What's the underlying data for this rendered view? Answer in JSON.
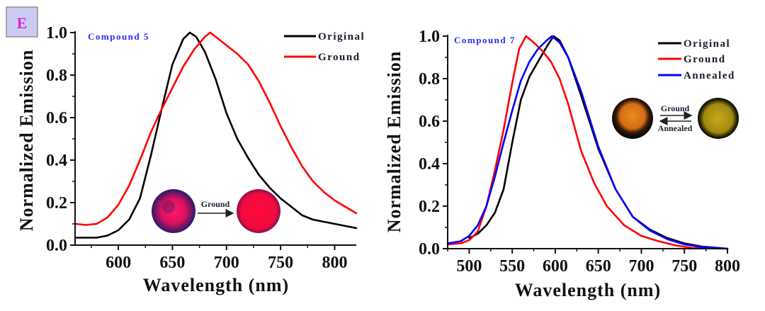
{
  "panel_label": "E",
  "colors": {
    "original": "#000000",
    "ground": "#ff0000",
    "annealed": "#0000ff",
    "compound_label": "#2a2aff",
    "badge_bg": "#ccccf0",
    "badge_text": "#e020e0"
  },
  "insets": {
    "left": {
      "arrow_label": "Ground"
    },
    "right": {
      "forward_label": "Ground",
      "reverse_label": "Annealed"
    }
  },
  "chart_data": [
    {
      "type": "line",
      "title": "Compound 5",
      "xlabel": "Wavelength (nm)",
      "ylabel": "Normalized Emission",
      "xlim": [
        560,
        820
      ],
      "ylim": [
        0.0,
        1.0
      ],
      "xticks": [
        600,
        650,
        700,
        750,
        800
      ],
      "xtick_labels": [
        "600",
        "650",
        "700",
        "750",
        "800"
      ],
      "yticks": [
        0.0,
        0.2,
        0.4,
        0.6,
        0.8,
        1.0
      ],
      "ytick_labels": [
        "0.0",
        "0.2",
        "0.4",
        "0.6",
        "0.8",
        "1.0"
      ],
      "grid": false,
      "legend_position": "top-right",
      "series": [
        {
          "name": "Original",
          "color": "#000000",
          "x": [
            560,
            580,
            590,
            600,
            610,
            620,
            630,
            640,
            650,
            660,
            666,
            672,
            680,
            690,
            700,
            710,
            720,
            730,
            740,
            750,
            760,
            770,
            780,
            790,
            800,
            810,
            820
          ],
          "y": [
            0.035,
            0.035,
            0.045,
            0.07,
            0.12,
            0.22,
            0.42,
            0.64,
            0.85,
            0.97,
            1.0,
            0.98,
            0.91,
            0.78,
            0.62,
            0.5,
            0.41,
            0.33,
            0.27,
            0.22,
            0.18,
            0.14,
            0.12,
            0.11,
            0.1,
            0.09,
            0.08
          ]
        },
        {
          "name": "Ground",
          "color": "#ff0000",
          "x": [
            560,
            570,
            580,
            590,
            600,
            610,
            620,
            630,
            640,
            650,
            660,
            670,
            680,
            685,
            690,
            700,
            710,
            720,
            730,
            740,
            750,
            760,
            770,
            780,
            790,
            800,
            810,
            820
          ],
          "y": [
            0.1,
            0.095,
            0.1,
            0.13,
            0.19,
            0.28,
            0.4,
            0.53,
            0.64,
            0.74,
            0.84,
            0.92,
            0.98,
            1.0,
            0.98,
            0.94,
            0.9,
            0.85,
            0.77,
            0.67,
            0.56,
            0.46,
            0.37,
            0.3,
            0.25,
            0.21,
            0.18,
            0.15
          ]
        }
      ]
    },
    {
      "type": "line",
      "title": "Compound 7",
      "xlabel": "Wavelength (nm)",
      "ylabel": "Normalized Emission",
      "xlim": [
        475,
        800
      ],
      "ylim": [
        0.0,
        1.0
      ],
      "xticks": [
        500,
        550,
        600,
        650,
        700,
        750,
        800
      ],
      "xtick_labels": [
        "500",
        "550",
        "600",
        "650",
        "700",
        "750",
        "800"
      ],
      "yticks": [
        0.0,
        0.2,
        0.4,
        0.6,
        0.8,
        1.0
      ],
      "ytick_labels": [
        "0.0",
        "0.2",
        "0.4",
        "0.6",
        "0.8",
        "1.0"
      ],
      "grid": false,
      "legend_position": "top-right",
      "series": [
        {
          "name": "Original",
          "color": "#000000",
          "x": [
            500,
            510,
            520,
            530,
            540,
            550,
            560,
            570,
            580,
            590,
            598,
            605,
            615,
            630,
            650,
            670,
            690,
            710,
            730,
            750,
            770,
            800
          ],
          "y": [
            0.05,
            0.07,
            0.11,
            0.17,
            0.28,
            0.5,
            0.7,
            0.81,
            0.88,
            0.95,
            1.0,
            0.98,
            0.9,
            0.72,
            0.47,
            0.28,
            0.15,
            0.09,
            0.05,
            0.025,
            0.01,
            0.0
          ]
        },
        {
          "name": "Ground",
          "color": "#ff0000",
          "x": [
            475,
            490,
            500,
            510,
            520,
            530,
            540,
            550,
            558,
            566,
            575,
            585,
            595,
            605,
            615,
            630,
            645,
            660,
            680,
            700,
            720,
            740,
            760,
            800
          ],
          "y": [
            0.02,
            0.025,
            0.04,
            0.08,
            0.2,
            0.37,
            0.56,
            0.78,
            0.94,
            1.0,
            0.97,
            0.93,
            0.88,
            0.8,
            0.68,
            0.46,
            0.31,
            0.2,
            0.11,
            0.06,
            0.035,
            0.015,
            0.003,
            0.0
          ]
        },
        {
          "name": "Annealed",
          "color": "#0000ff",
          "x": [
            475,
            490,
            500,
            510,
            520,
            530,
            540,
            550,
            560,
            570,
            580,
            590,
            596,
            605,
            615,
            630,
            650,
            670,
            690,
            710,
            730,
            750,
            770,
            800
          ],
          "y": [
            0.025,
            0.035,
            0.06,
            0.11,
            0.2,
            0.34,
            0.5,
            0.65,
            0.79,
            0.88,
            0.94,
            0.98,
            1.0,
            0.97,
            0.9,
            0.74,
            0.48,
            0.28,
            0.15,
            0.085,
            0.045,
            0.02,
            0.008,
            0.0
          ]
        }
      ]
    }
  ]
}
